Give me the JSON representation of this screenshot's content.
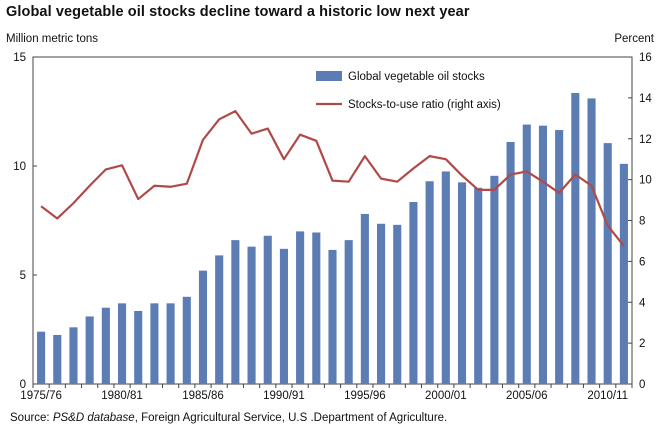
{
  "chart_data": {
    "type": "bar+line",
    "title": "Global vegetable oil stocks decline toward a historic low next year",
    "y_left_label": "Million metric tons",
    "y_right_label": "Percent",
    "y_left_range": [
      0,
      15
    ],
    "y_left_ticks": [
      "0",
      "5",
      "10",
      "15"
    ],
    "y_right_range": [
      0,
      16
    ],
    "y_right_ticks": [
      "0",
      "2",
      "4",
      "6",
      "8",
      "10",
      "12",
      "14",
      "16"
    ],
    "x_tick_labels": [
      "1975/76",
      "1980/81",
      "1985/86",
      "1990/91",
      "1995/96",
      "2000/01",
      "2005/06",
      "2010/11"
    ],
    "x_tick_indices": [
      0,
      5,
      10,
      15,
      20,
      25,
      30,
      35
    ],
    "grid": false,
    "legend_position": "top-right",
    "series": [
      {
        "name": "Global vegetable oil stocks",
        "kind": "bar",
        "axis": "left",
        "color": "#5b7db4",
        "values": [
          2.4,
          2.25,
          2.6,
          3.1,
          3.5,
          3.7,
          3.35,
          3.7,
          3.7,
          4.0,
          5.2,
          5.9,
          6.6,
          6.3,
          6.8,
          6.2,
          7.0,
          6.95,
          6.15,
          6.6,
          7.8,
          7.35,
          7.3,
          8.35,
          9.3,
          9.75,
          9.25,
          9.0,
          9.55,
          11.1,
          11.9,
          11.85,
          11.65,
          13.35,
          13.1,
          11.05,
          10.1
        ]
      },
      {
        "name": "Stocks-to-use ratio (right axis)",
        "kind": "line",
        "axis": "right",
        "color": "#b04a49",
        "values": [
          8.7,
          8.1,
          8.85,
          9.7,
          10.5,
          10.7,
          9.05,
          9.7,
          9.65,
          9.8,
          11.95,
          12.95,
          13.35,
          12.25,
          12.5,
          11.0,
          12.2,
          11.9,
          9.95,
          9.9,
          11.15,
          10.05,
          9.9,
          10.55,
          11.15,
          11.0,
          10.2,
          9.5,
          9.5,
          10.25,
          10.4,
          9.9,
          9.35,
          10.25,
          9.7,
          7.75,
          6.75
        ]
      }
    ]
  },
  "source": {
    "prefix": "Source:",
    "database": "PS&D database",
    "rest": ", Foreign Agricultural Service, U.S .Department of Agriculture."
  }
}
